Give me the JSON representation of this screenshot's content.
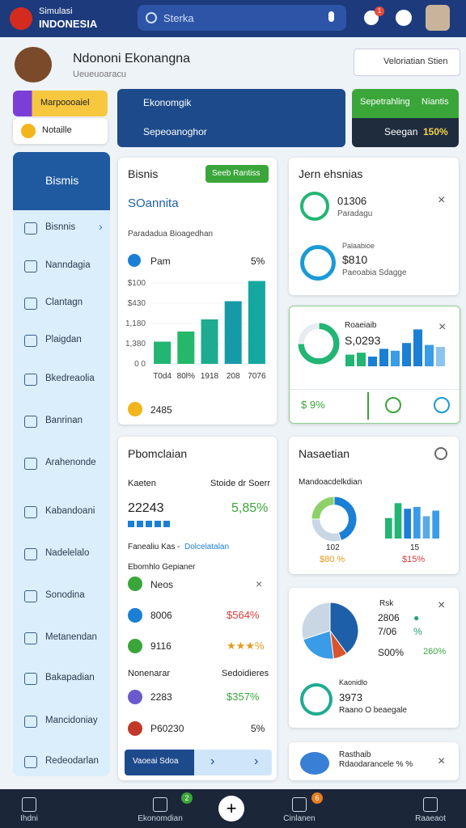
{
  "header": {
    "brand_top": "Simulasi",
    "brand": "INDONESIA",
    "search": "Sterka",
    "badge": "1"
  },
  "profile": {
    "name": "Ndononi Ekonangna",
    "subtitle": "Ueueuoaracu",
    "button": "Veloriatian Stien"
  },
  "top_cards": {
    "chip1": "Marpoooaiel",
    "chip2": "Notaille",
    "center1": "Ekonomgik",
    "center2": "Sepeoanoghor",
    "right_header1": "Sepetrahling",
    "right_header2": "Niantis",
    "right_label": "Seegan",
    "right_value": "150%"
  },
  "sidebar": {
    "title": "Bismis",
    "items": [
      "Bisnnis",
      "Nanndagia",
      "Clantagn",
      "Plaigdan",
      "Bkedreaolia",
      "Banrinan",
      "Arahenonde",
      "Kabandoani",
      "Nadelelalo",
      "Sonodina",
      "Metanendan",
      "Bakapadian",
      "Mancidoniay",
      "Redeodarlan"
    ]
  },
  "business_card": {
    "title": "Bisnis",
    "button": "Seeb Rantiss",
    "subtitle": "SOannita",
    "caption": "Paradadua Bioagedhan",
    "metric_label": "Pam",
    "metric_value": "5%",
    "footer": "2485",
    "chart": {
      "ylim": [
        0,
        4.2
      ],
      "yticks": [
        {
          "value": 0,
          "label": "0 0"
        },
        {
          "value": 1,
          "label": "1,380"
        },
        {
          "value": 2,
          "label": "1,180"
        },
        {
          "value": 3,
          "label": "$430"
        },
        {
          "value": 4,
          "label": "$100"
        }
      ],
      "categories": [
        "T0d4",
        "80l%",
        "1918",
        "208",
        "7076"
      ],
      "values": [
        1.1,
        1.6,
        2.2,
        3.1,
        4.1
      ],
      "colors": [
        "#22b573",
        "#25b86a",
        "#1fab8f",
        "#169aa8",
        "#14a8a0"
      ]
    }
  },
  "finance_card": {
    "title": "Pbomclaian",
    "col1": "Kaeten",
    "col2": "Stoide dr Soerr",
    "amount": "22243",
    "change": "5,85%",
    "link_prefix": "Fanealiu Kas -",
    "link": "Dolcelatalan",
    "section": "Ebomhlo Gepianer",
    "rows": [
      {
        "label": "Neos"
      },
      {
        "label": "8006",
        "value": "$564%"
      },
      {
        "label": "9116",
        "value": "★★★%"
      }
    ],
    "section2_left": "Nonenarar",
    "section2_right": "Sedoidieres",
    "rows2": [
      {
        "label": "2283",
        "value": "$357%"
      },
      {
        "label": "P60230",
        "value": "5%"
      }
    ],
    "button": "Vaoeai Sdoa"
  },
  "right_cards": {
    "c1": {
      "title": "Jern ehsnias",
      "item1_value": "01306",
      "item1_label": "Paradagu",
      "item2_label": "Palaabioe",
      "item2_value": "$810",
      "item2_sub": "Paeoabia Sdagge"
    },
    "c2": {
      "label": "Roaeiaib",
      "value": "S,0293",
      "ring": {
        "values": [
          75,
          25
        ],
        "colors": [
          "#22b573",
          "#e6ecef"
        ]
      },
      "bars": {
        "ylim": [
          0,
          100
        ],
        "values": [
          30,
          35,
          25,
          45,
          40,
          60,
          95,
          55,
          50
        ],
        "colors": [
          "#22b573",
          "#22b573",
          "#1b7fd6",
          "#1b7fd6",
          "#3a9be6",
          "#1b7fd6",
          "#1b7fd6",
          "#3a9be6",
          "#8cc4ef"
        ]
      },
      "footer": "$ 9%"
    },
    "c3": {
      "title": "Nasaetian",
      "subtitle": "Mandoacdelkdian",
      "donut": {
        "values": [
          45,
          30,
          25
        ],
        "colors": [
          "#1b7fd6",
          "#c9d6e4",
          "#8ed16a"
        ]
      },
      "bars": {
        "ylim": [
          0,
          100
        ],
        "values": [
          55,
          95,
          80,
          85,
          60,
          75
        ],
        "colors": [
          "#22b573",
          "#22b573",
          "#1b7fd6",
          "#3a9be6",
          "#5aaae8",
          "#3a9be6"
        ]
      },
      "left_value": "102",
      "left_pct": "$80 %",
      "right_value": "15",
      "right_pct": "$15%"
    },
    "c4": {
      "label": "Rsk",
      "legend": [
        {
          "value": "2806",
          "mark": "●"
        },
        {
          "value": "7/06",
          "mark": "%"
        },
        {
          "value": "S00%",
          "mark": "260%"
        }
      ],
      "pie": {
        "values": [
          40,
          8,
          22,
          30
        ],
        "colors": [
          "#1d5fa8",
          "#d9532c",
          "#3a9be6",
          "#c9d6e4"
        ]
      },
      "item_label": "Kaonidlo",
      "item_value": "3973",
      "item_sub": "Raano O beaegale"
    },
    "c5": {
      "title": "Rasthaib",
      "sub": "Rdaodarancele % %"
    }
  },
  "nav": {
    "items": [
      "Ihdni",
      "Ekonomdian",
      "Cinlanen",
      "Raaeaot"
    ],
    "badge1": "2",
    "badge2": "6"
  }
}
